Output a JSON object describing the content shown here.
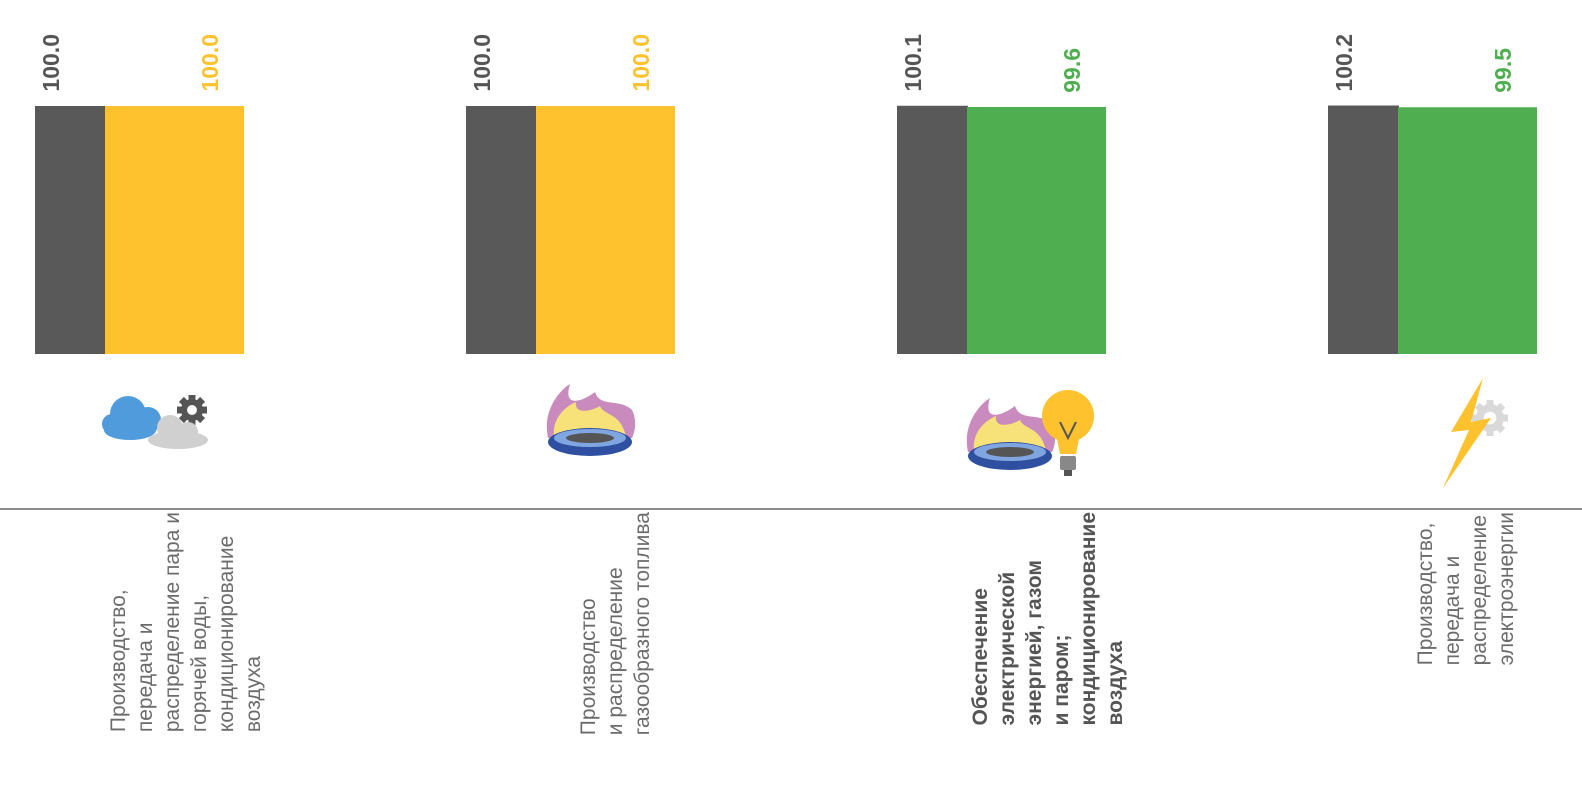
{
  "colors": {
    "dark": "#595959",
    "yellow": "#FDC22D",
    "green": "#4FAE4F",
    "label": "#6b6b6b",
    "label_bold": "#555555"
  },
  "chart_data": {
    "type": "bar",
    "categories": [
      "Производство,\nпередача и\nраспределение пара и\nгорячей воды,\nкондиционирование\nвоздуха",
      "Производство\nи распределение\nгазообразного топлива",
      "Обеспечение\nэлектрической\nэнергией, газом\nи паром;\nкондиционирование\nвоздуха",
      "Производство,\nпередача и\nраспределение\nэлектроэнергии"
    ],
    "series": [
      {
        "values": [
          100.0,
          100.0,
          100.1,
          100.2
        ]
      },
      {
        "values": [
          100.0,
          100.0,
          99.6,
          99.5
        ]
      }
    ],
    "value_labels": [
      [
        "100.0",
        "100.0",
        "100.1",
        "100.2"
      ],
      [
        "100.0",
        "100.0",
        "99.6",
        "99.5"
      ]
    ],
    "bar_colors": [
      [
        "#595959",
        "#595959",
        "#595959",
        "#595959"
      ],
      [
        "#FDC22D",
        "#FDC22D",
        "#4FAE4F",
        "#4FAE4F"
      ]
    ],
    "bold_category": 2,
    "icons": [
      "cloud-gear-icon",
      "gas-burner-icon",
      "burner-lightbulb-icon",
      "lightning-gear-icon"
    ]
  }
}
